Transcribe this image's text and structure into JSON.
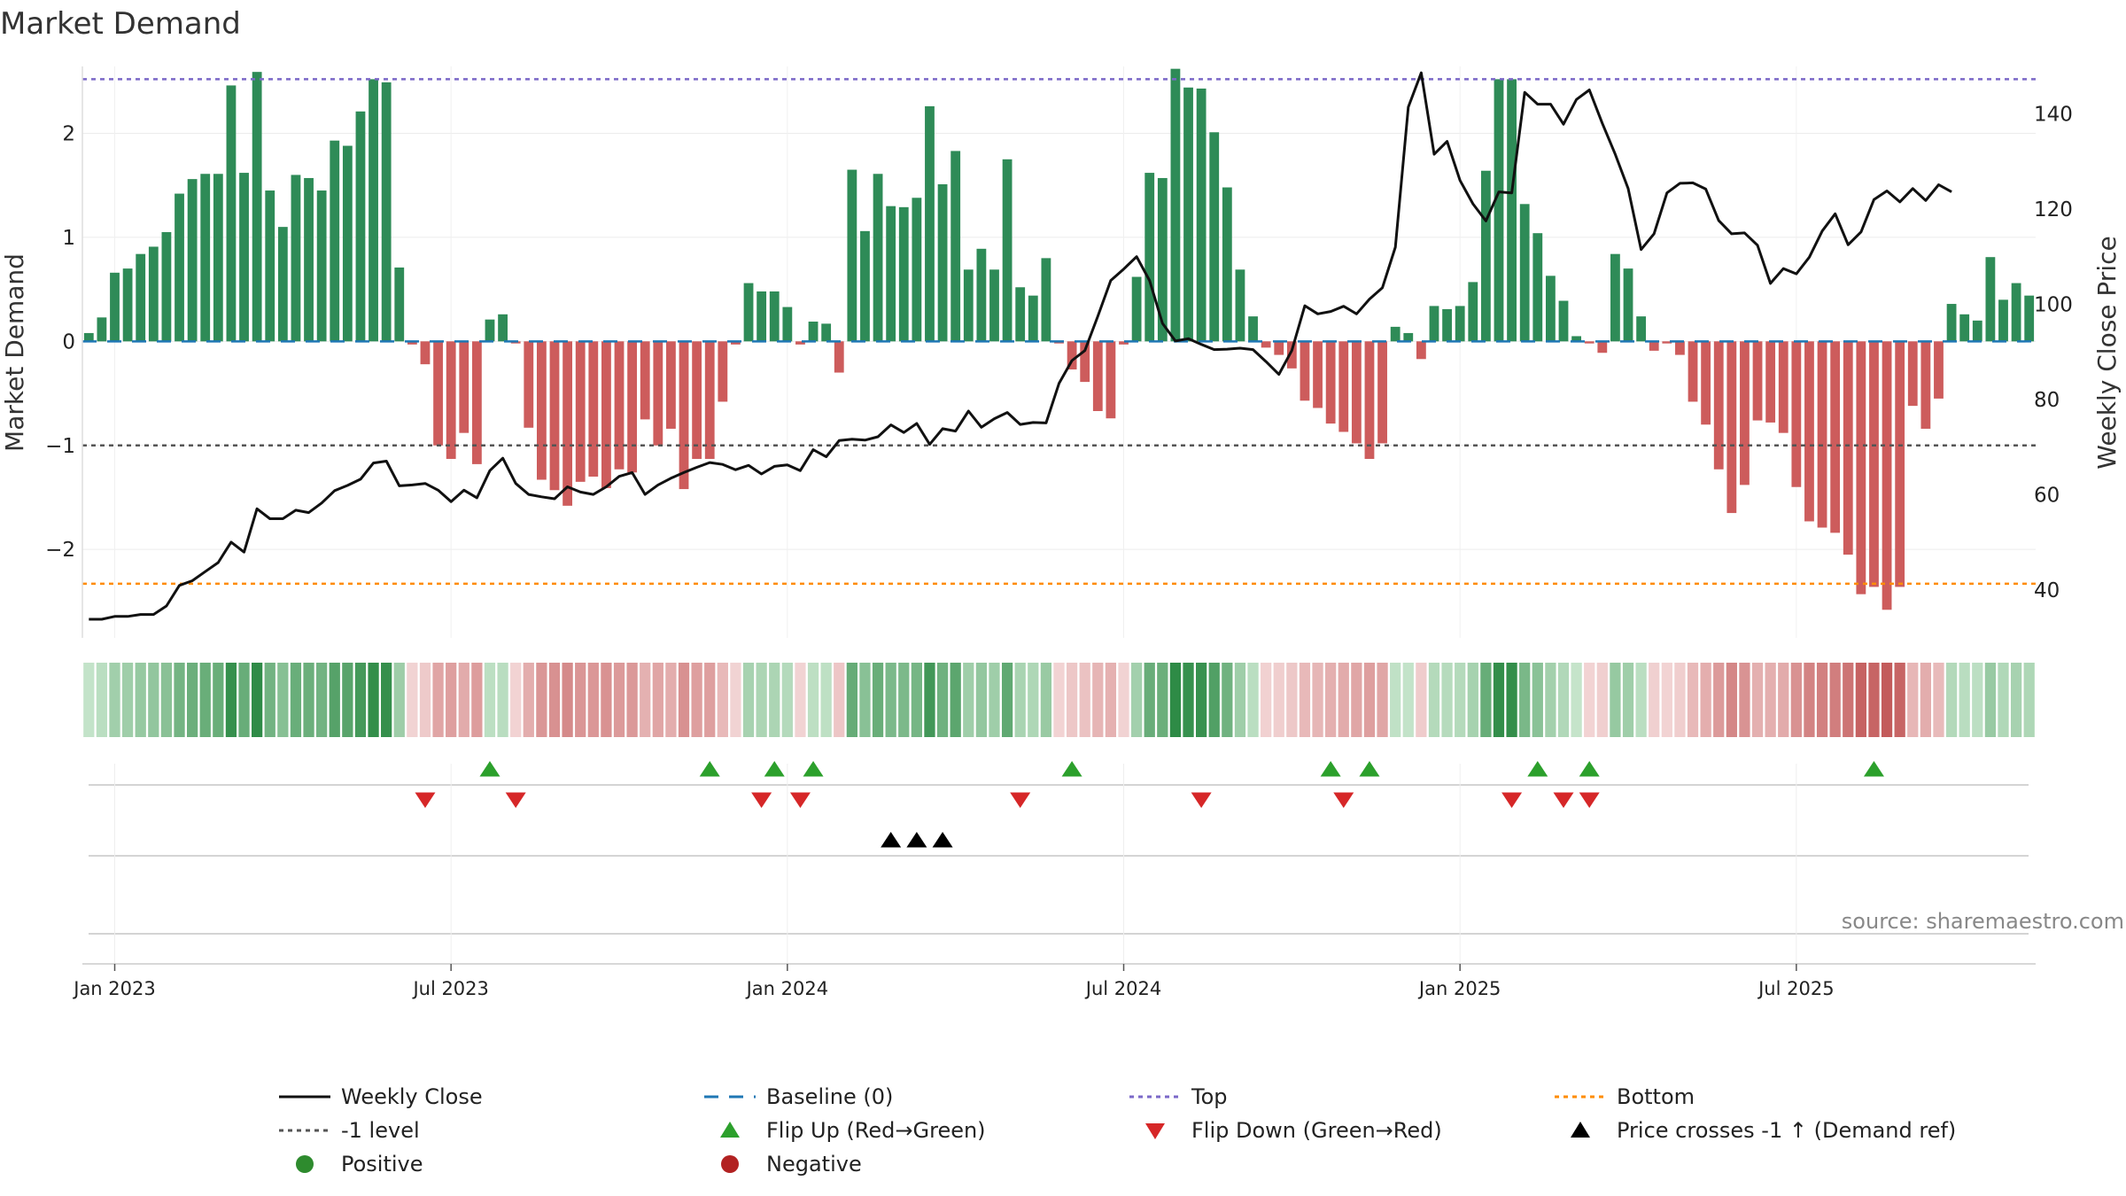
{
  "chart_data": {
    "type": "bar+line",
    "title": "Market Demand",
    "ylabel_left": "Market Demand",
    "ylabel_right": "Weekly Close Price",
    "left_ylim": [
      -2.85,
      2.6
    ],
    "right_ylim": [
      30,
      149
    ],
    "left_yticks": [
      2,
      1,
      0,
      -1,
      -2
    ],
    "left_ytick_labels": [
      "2",
      "1",
      "0",
      "−1",
      "−2"
    ],
    "right_yticks": [
      140,
      120,
      100,
      80,
      60,
      40
    ],
    "right_ytick_labels": [
      "140",
      "120",
      "100",
      "80",
      "60",
      "40"
    ],
    "x_tick_labels": [
      "Jan 2023",
      "Jul 2023",
      "Jan 2024",
      "Jul 2024",
      "Jan 2025",
      "Jul 2025"
    ],
    "x_tick_weeks": [
      2,
      28,
      54,
      80,
      106,
      132
    ],
    "top_level": 2.52,
    "bottom_level": -2.33,
    "minus_one_level": -1,
    "baseline": 0,
    "demand_values": [
      0.08,
      0.23,
      0.66,
      0.7,
      0.84,
      0.91,
      1.05,
      1.42,
      1.56,
      1.61,
      1.61,
      2.46,
      1.62,
      2.59,
      1.45,
      1.1,
      1.6,
      1.57,
      1.45,
      1.93,
      1.88,
      2.21,
      2.52,
      2.49,
      0.71,
      -0.03,
      -0.22,
      -1.0,
      -1.13,
      -0.88,
      -1.18,
      0.21,
      0.26,
      -0.02,
      -0.83,
      -1.33,
      -1.43,
      -1.58,
      -1.35,
      -1.3,
      -1.41,
      -1.23,
      -1.26,
      -0.75,
      -1.0,
      -0.84,
      -1.42,
      -1.13,
      -1.13,
      -0.58,
      -0.03,
      0.56,
      0.48,
      0.48,
      0.33,
      -0.03,
      0.19,
      0.17,
      -0.3,
      1.65,
      1.06,
      1.61,
      1.3,
      1.29,
      1.38,
      2.26,
      1.51,
      1.83,
      0.69,
      0.89,
      0.69,
      1.75,
      0.52,
      0.44,
      0.8,
      -0.02,
      -0.27,
      -0.39,
      -0.67,
      -0.74,
      -0.03,
      0.62,
      1.62,
      1.57,
      2.62,
      2.44,
      2.43,
      2.01,
      1.48,
      0.69,
      0.24,
      -0.06,
      -0.13,
      -0.26,
      -0.57,
      -0.64,
      -0.79,
      -0.87,
      -0.98,
      -1.13,
      -0.98,
      0.14,
      0.08,
      -0.17,
      0.34,
      0.31,
      0.34,
      0.57,
      1.64,
      2.52,
      2.52,
      1.32,
      1.04,
      0.63,
      0.39,
      0.05,
      -0.02,
      -0.11,
      0.84,
      0.7,
      0.24,
      -0.09,
      -0.02,
      -0.13,
      -0.58,
      -0.8,
      -1.23,
      -1.65,
      -1.38,
      -0.76,
      -0.78,
      -0.88,
      -1.4,
      -1.73,
      -1.79,
      -1.84,
      -2.05,
      -2.43,
      -2.36,
      -2.58,
      -2.36,
      -0.62,
      -0.84,
      -0.55,
      0.36,
      0.26,
      0.2,
      0.81,
      0.4,
      0.56,
      0.44
    ],
    "weekly_close": [
      33.9,
      33.9,
      34.5,
      34.5,
      34.9,
      34.9,
      36.7,
      41.0,
      42.0,
      43.9,
      45.8,
      50.1,
      48.0,
      57.1,
      55.0,
      55.0,
      56.8,
      56.3,
      58.3,
      60.9,
      62.0,
      63.3,
      66.7,
      67.1,
      61.9,
      62.1,
      62.4,
      61.0,
      58.6,
      61.0,
      59.4,
      65.1,
      67.7,
      62.4,
      60.1,
      59.6,
      59.2,
      61.7,
      60.6,
      60.1,
      61.7,
      63.9,
      64.7,
      60.1,
      62.1,
      63.5,
      64.7,
      65.8,
      66.8,
      66.4,
      65.3,
      66.2,
      64.4,
      66.0,
      66.3,
      65.1,
      69.5,
      68.0,
      71.4,
      71.7,
      71.5,
      72.2,
      74.7,
      73.1,
      75.0,
      70.6,
      73.9,
      73.4,
      77.6,
      74.2,
      76.0,
      77.3,
      74.8,
      75.2,
      75.1,
      83.4,
      88.2,
      90.3,
      97.5,
      105.0,
      107.4,
      110.0,
      105.0,
      96.0,
      92.3,
      92.8,
      91.6,
      90.5,
      90.6,
      90.8,
      90.5,
      88.0,
      85.3,
      90.3,
      99.7,
      98.0,
      98.5,
      99.6,
      98.0,
      101.1,
      103.5,
      112.0,
      141.4,
      148.6,
      131.5,
      134.2,
      126.0,
      121.1,
      117.5,
      123.6,
      123.4,
      144.5,
      142.0,
      142.0,
      137.8,
      143.0,
      145.0,
      138.0,
      131.5,
      124.3,
      111.5,
      114.8,
      123.4,
      125.4,
      125.5,
      124.2,
      117.6,
      114.8,
      115.0,
      112.4,
      104.4,
      107.5,
      106.4,
      109.9,
      115.4,
      119.0,
      112.5,
      115.2,
      122.0,
      123.8,
      121.5,
      124.3,
      121.8,
      125.1,
      123.6
    ],
    "color_strip_note": "Heatmap strip of demand intensity per week: green = positive, red = negative",
    "flip_up_weeks": [
      31,
      48,
      53,
      56,
      76,
      96,
      99,
      112,
      116,
      138
    ],
    "flip_down_weeks": [
      26,
      33,
      52,
      55,
      72,
      86,
      97,
      110,
      114,
      116
    ],
    "price_cross_weeks": [
      62,
      64,
      66
    ],
    "colors": {
      "bar_positive": "#2e8b57",
      "bar_negative": "#cd5c5c",
      "line": "#111111",
      "baseline": "#1f77b4",
      "top": "#7b68c8",
      "bottom": "#ff8c00",
      "minus_one": "#555555",
      "flip_up": "#2ca02c",
      "flip_down": "#d62728",
      "price_cross": "#000000"
    },
    "legend": [
      {
        "label": "Weekly Close",
        "kind": "solid-line",
        "color": "#111111"
      },
      {
        "label": "Baseline (0)",
        "kind": "dashed-line",
        "color": "#1f77b4"
      },
      {
        "label": "Top",
        "kind": "dotted-line",
        "color": "#7b68c8"
      },
      {
        "label": "Bottom",
        "kind": "dotted-line",
        "color": "#ff8c00"
      },
      {
        "label": "-1 level",
        "kind": "dotted-line",
        "color": "#555555"
      },
      {
        "label": "Flip Up (Red→Green)",
        "kind": "triangle-up",
        "color": "#2ca02c"
      },
      {
        "label": "Flip Down (Green→Red)",
        "kind": "triangle-down",
        "color": "#d62728"
      },
      {
        "label": "Price crosses -1 ↑ (Demand ref)",
        "kind": "triangle-up",
        "color": "#000000"
      },
      {
        "label": "Positive",
        "kind": "circle",
        "color": "#2e8b2e"
      },
      {
        "label": "Negative",
        "kind": "circle",
        "color": "#b22222"
      }
    ],
    "legend_placement": "bottom",
    "source": "source: sharemaestro.com"
  }
}
